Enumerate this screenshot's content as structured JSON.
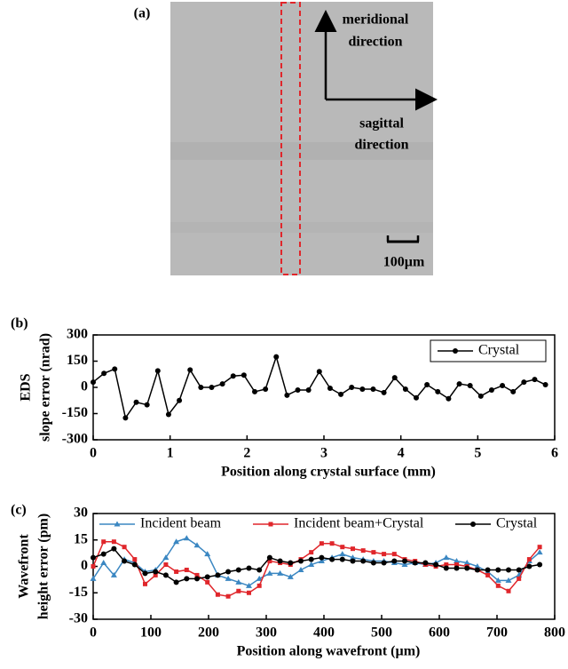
{
  "image_panel": {
    "label": "(a)",
    "arrow_up_label": [
      "meridional",
      "direction"
    ],
    "arrow_right_label": [
      "sagittal",
      "direction"
    ],
    "scale_bar": "100µm"
  },
  "chart_data": [
    {
      "type": "line",
      "panel_label": "(b)",
      "y_label": [
        "EDS",
        "slope error (nrad)"
      ],
      "x_label": "Position along crystal surface (mm)",
      "xlim": [
        0,
        6
      ],
      "xticks": [
        0,
        1,
        2,
        3,
        4,
        5,
        6
      ],
      "ylim": [
        -300,
        300
      ],
      "yticks": [
        -300,
        -150,
        0,
        150,
        300
      ],
      "legend": "upper-right",
      "x": [
        0,
        0.14,
        0.28,
        0.42,
        0.56,
        0.7,
        0.84,
        0.98,
        1.12,
        1.26,
        1.4,
        1.54,
        1.68,
        1.82,
        1.96,
        2.1,
        2.24,
        2.38,
        2.52,
        2.66,
        2.8,
        2.94,
        3.08,
        3.22,
        3.36,
        3.5,
        3.64,
        3.78,
        3.92,
        4.06,
        4.2,
        4.34,
        4.48,
        4.62,
        4.76,
        4.9,
        5.04,
        5.18,
        5.32,
        5.46,
        5.6,
        5.74,
        5.88
      ],
      "series": [
        {
          "name": "Crystal",
          "color": "#000000",
          "marker": "circle",
          "values": [
            30,
            80,
            105,
            -175,
            -85,
            -100,
            95,
            -155,
            -75,
            100,
            0,
            0,
            20,
            65,
            70,
            -25,
            -10,
            175,
            -45,
            -15,
            -15,
            90,
            -5,
            -40,
            0,
            -10,
            -10,
            -30,
            55,
            -10,
            -60,
            15,
            -25,
            -65,
            20,
            10,
            -50,
            -15,
            10,
            -25,
            30,
            45,
            15
          ]
        }
      ]
    },
    {
      "type": "line",
      "panel_label": "(c)",
      "y_label": [
        "Wavefront",
        "height error (pm)"
      ],
      "x_label": "Position along wavefront (µm)",
      "xlim": [
        0,
        800
      ],
      "xticks": [
        0,
        100,
        200,
        300,
        400,
        500,
        600,
        700,
        800
      ],
      "ylim": [
        -30,
        30
      ],
      "yticks": [
        -30,
        -15,
        0,
        15,
        30
      ],
      "legend": "top",
      "x": [
        0,
        18,
        36,
        54,
        72,
        90,
        108,
        126,
        144,
        162,
        180,
        198,
        216,
        234,
        252,
        270,
        288,
        306,
        324,
        342,
        360,
        378,
        396,
        414,
        432,
        450,
        468,
        486,
        504,
        522,
        540,
        558,
        576,
        594,
        612,
        630,
        648,
        666,
        684,
        702,
        720,
        738,
        756,
        774
      ],
      "series": [
        {
          "name": "Incident beam",
          "color": "#3b87c2",
          "marker": "triangle",
          "values": [
            -7,
            2,
            -5,
            4,
            2,
            -3,
            -2,
            5,
            14,
            16,
            12,
            7,
            -5,
            -7,
            -9,
            -11,
            -7,
            -4,
            -4,
            -6,
            -2,
            1,
            3,
            5,
            7,
            5,
            4,
            3,
            3,
            2,
            1,
            2,
            1,
            2,
            5,
            3,
            2,
            0,
            -3,
            -8,
            -8,
            -5,
            3,
            8
          ]
        },
        {
          "name": "Incident beam+Crystal",
          "color": "#e0262b",
          "marker": "square",
          "values": [
            0,
            14,
            14,
            11,
            4,
            -10,
            -5,
            1,
            -3,
            -2,
            -5,
            -9,
            -16,
            -17,
            -14,
            -15,
            -11,
            3,
            2,
            1,
            4,
            8,
            13,
            13,
            11,
            10,
            9,
            8,
            7,
            7,
            4,
            3,
            1,
            0,
            1,
            1,
            0,
            -2,
            -5,
            -11,
            -14,
            -7,
            4,
            11
          ]
        },
        {
          "name": "Crystal",
          "color": "#000000",
          "marker": "circle",
          "values": [
            5,
            7,
            10,
            3,
            1,
            -4,
            -3,
            -5,
            -9,
            -7,
            -7,
            -6,
            -5,
            -3,
            -2,
            -1,
            -2,
            5,
            3,
            2,
            3,
            4,
            5,
            4,
            4,
            3,
            3,
            2,
            2,
            3,
            3,
            2,
            2,
            1,
            -1,
            -1,
            -1,
            -2,
            -2,
            -2,
            -2,
            -2,
            0,
            1
          ]
        }
      ]
    }
  ]
}
